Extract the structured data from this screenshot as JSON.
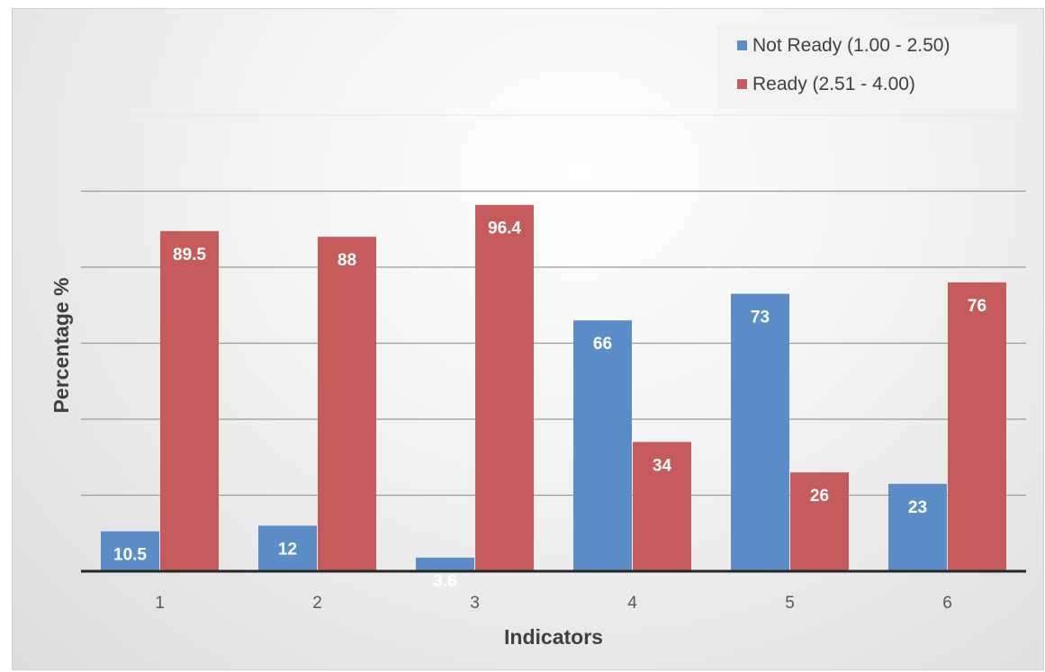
{
  "chart_data": {
    "type": "bar",
    "title": "",
    "xlabel": "Indicators",
    "ylabel": "Percentage %",
    "categories": [
      "1",
      "2",
      "3",
      "4",
      "5",
      "6"
    ],
    "series": [
      {
        "name": "Not Ready (1.00 - 2.50)",
        "values": [
          10.5,
          12,
          3.6,
          66,
          73,
          23
        ],
        "color": "#5b8ec9"
      },
      {
        "name": "Ready (2.51 - 4.00)",
        "values": [
          89.5,
          88,
          96.4,
          34,
          26,
          76
        ],
        "color": "#c65b5b"
      }
    ],
    "ylim": [
      0,
      120
    ],
    "grid": true,
    "y_tick_labels_shown": false,
    "legend_position": "top-right"
  }
}
